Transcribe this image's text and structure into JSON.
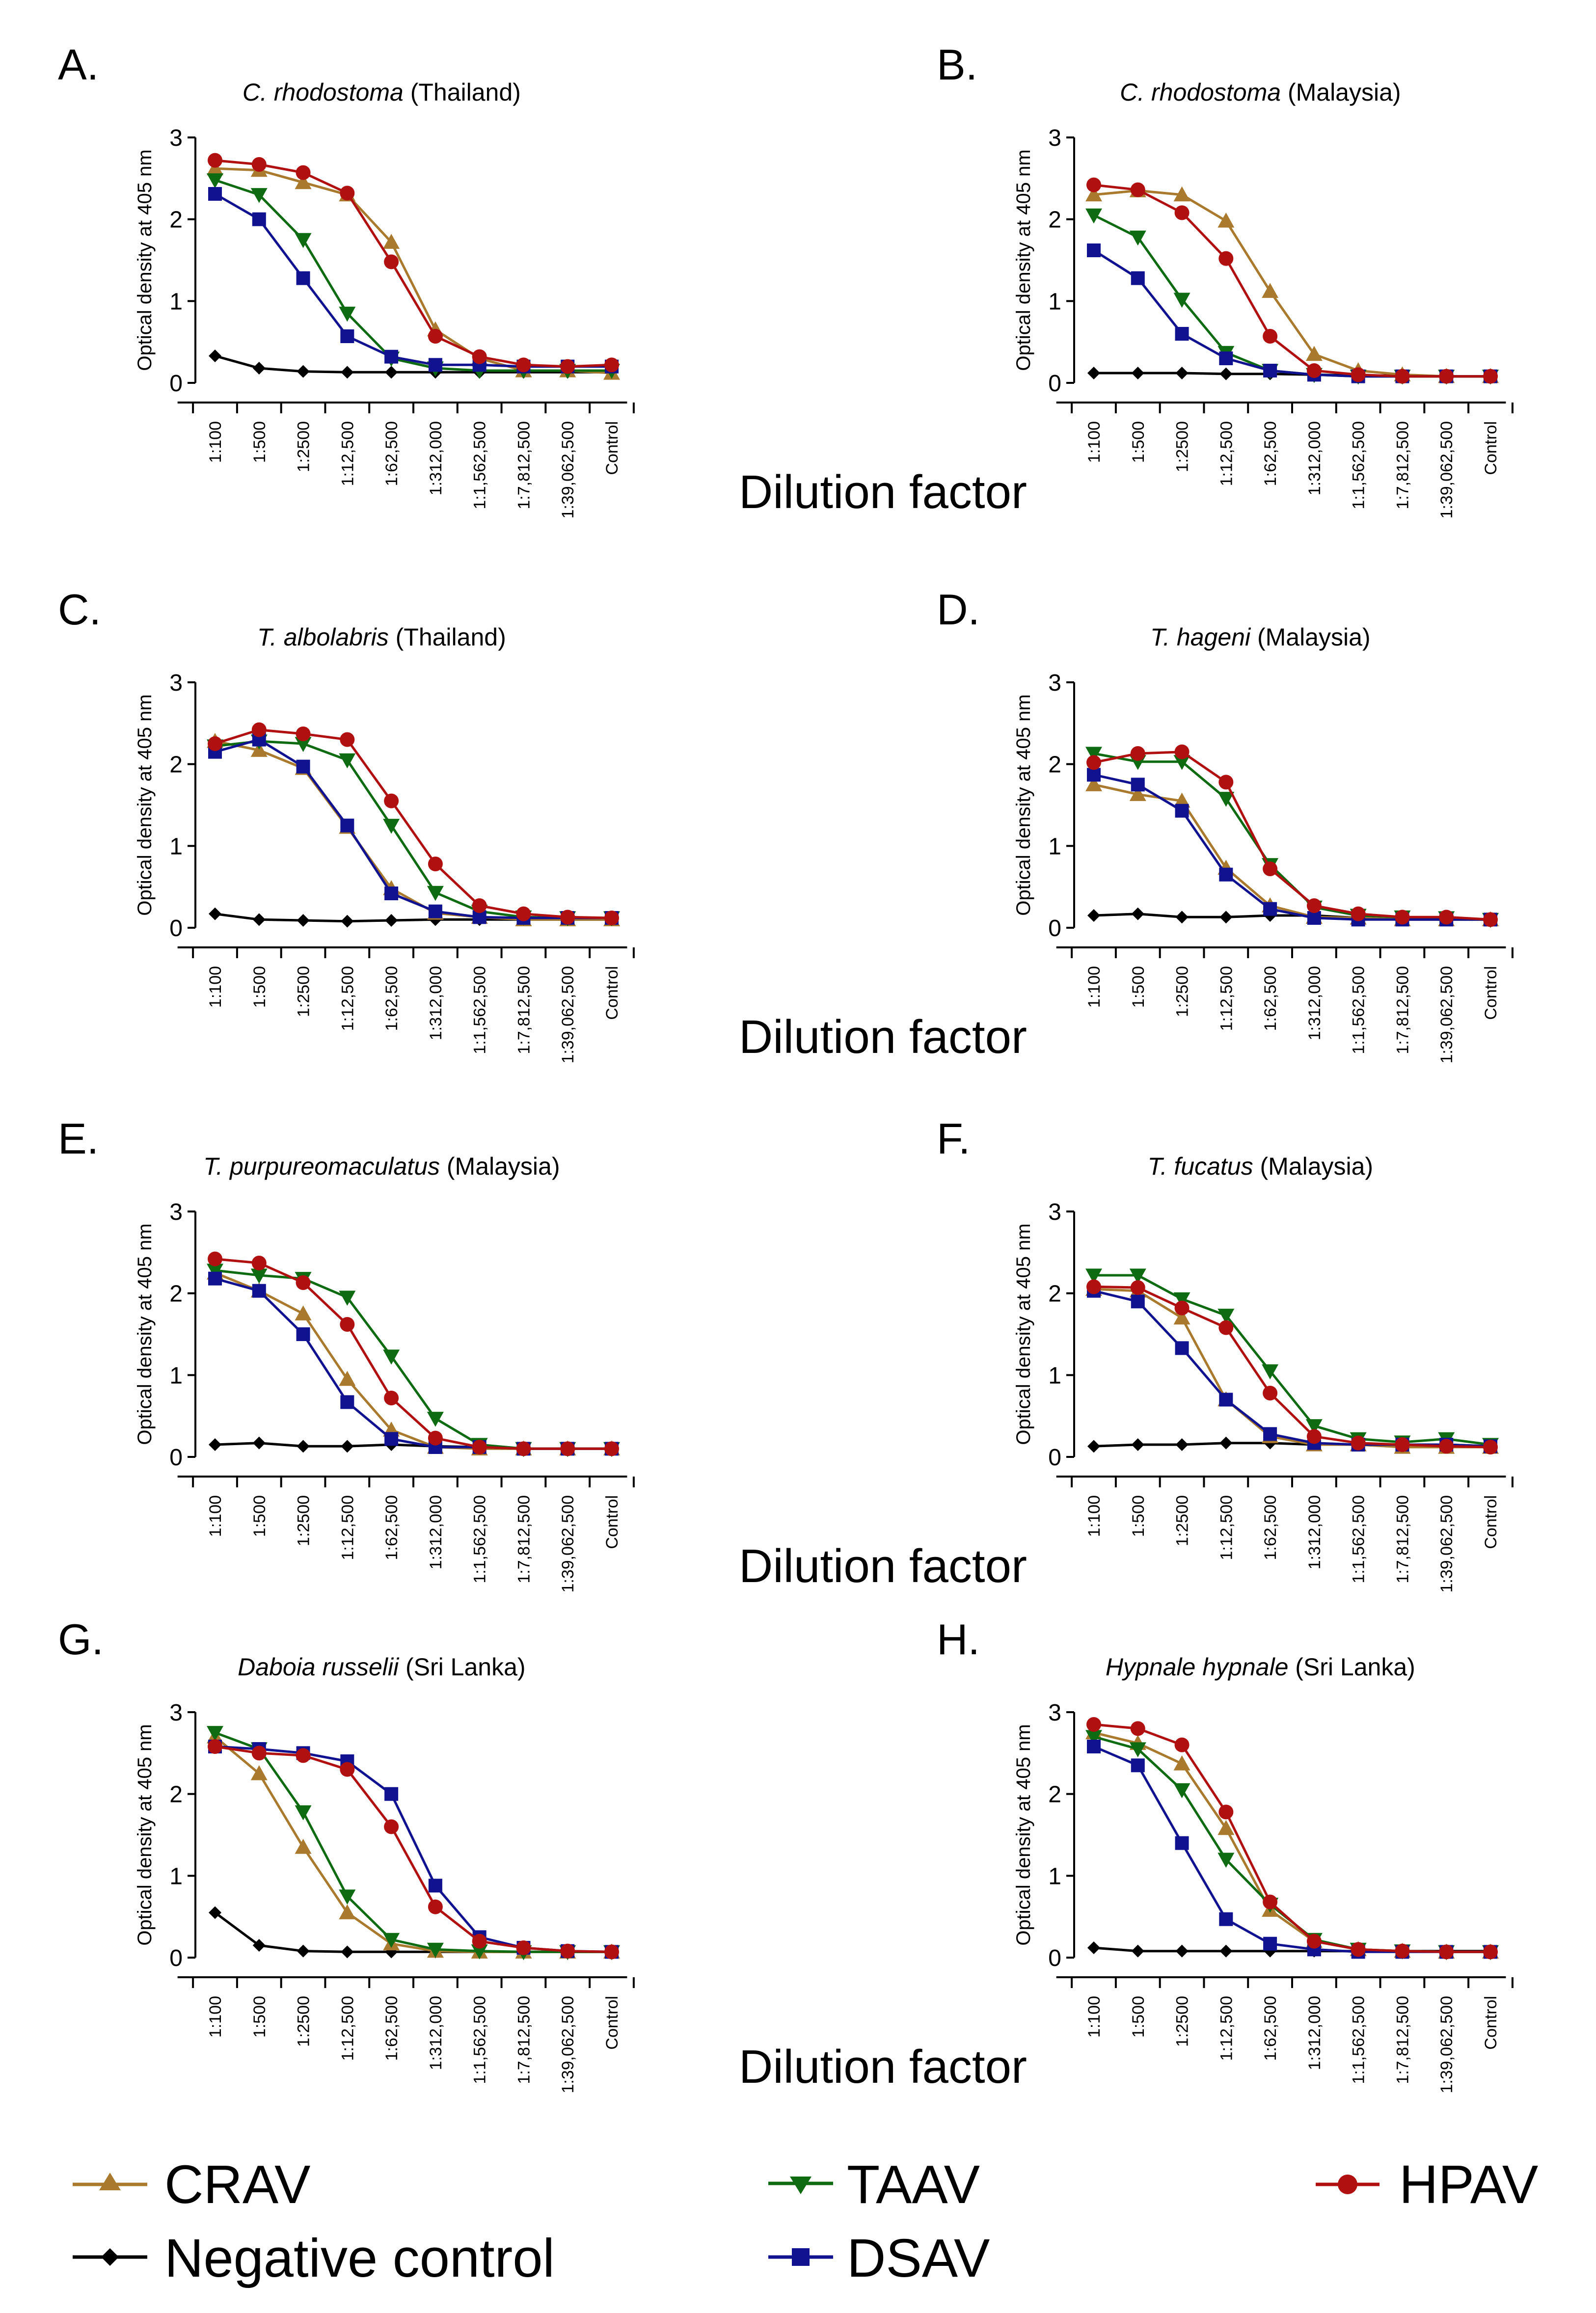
{
  "categories": [
    "1:100",
    "1:500",
    "1:2500",
    "1:12,500",
    "1:62,500",
    "1:312,000",
    "1:1,562,500",
    "1:7,812,500",
    "1:39,062,500",
    "Control"
  ],
  "ylabel": "Optical density at 405 nm",
  "xlabel": "Dilution factor",
  "yticks": [
    "0",
    "1",
    "2",
    "3"
  ],
  "series_styles": {
    "CRAV": {
      "color": "#a97a2e",
      "marker": "triangle-up"
    },
    "TAAV": {
      "color": "#0f6b12",
      "marker": "triangle-down"
    },
    "HPAV": {
      "color": "#b01010",
      "marker": "circle"
    },
    "DSAV": {
      "color": "#10128f",
      "marker": "square"
    },
    "Negative control": {
      "color": "#000000",
      "marker": "diamond"
    }
  },
  "legend": {
    "items": [
      {
        "key": "CRAV",
        "label": "CRAV"
      },
      {
        "key": "TAAV",
        "label": "TAAV"
      },
      {
        "key": "HPAV",
        "label": "HPAV"
      },
      {
        "key": "Negative control",
        "label": "Negative control"
      },
      {
        "key": "DSAV",
        "label": "DSAV"
      }
    ]
  },
  "chart_data": [
    {
      "type": "line",
      "panel": "A.",
      "title_italic": "C. rhodostoma",
      "title_rest": " (Thailand)",
      "ylabel": "Optical density at 405 nm",
      "xlabel": "Dilution factor",
      "ylim": [
        0,
        3
      ],
      "series": [
        {
          "name": "CRAV",
          "values": [
            2.62,
            2.6,
            2.45,
            2.3,
            1.72,
            0.65,
            0.3,
            0.15,
            0.15,
            0.12
          ]
        },
        {
          "name": "TAAV",
          "values": [
            2.48,
            2.3,
            1.75,
            0.85,
            0.3,
            0.18,
            0.15,
            0.15,
            0.15,
            0.15
          ]
        },
        {
          "name": "HPAV",
          "values": [
            2.72,
            2.67,
            2.57,
            2.32,
            1.48,
            0.57,
            0.32,
            0.22,
            0.2,
            0.22
          ]
        },
        {
          "name": "DSAV",
          "values": [
            2.31,
            2.0,
            1.28,
            0.57,
            0.32,
            0.22,
            0.22,
            0.2,
            0.2,
            0.2
          ]
        },
        {
          "name": "Negative control",
          "values": [
            0.33,
            0.18,
            0.14,
            0.13,
            0.13,
            0.13,
            0.13,
            0.13,
            0.13,
            0.13
          ]
        }
      ]
    },
    {
      "type": "line",
      "panel": "B.",
      "title_italic": "C. rhodostoma",
      "title_rest": " (Malaysia)",
      "ylabel": "Optical density at 405 nm",
      "xlabel": "Dilution factor",
      "ylim": [
        0,
        3
      ],
      "series": [
        {
          "name": "CRAV",
          "values": [
            2.3,
            2.35,
            2.3,
            1.98,
            1.12,
            0.35,
            0.15,
            0.1,
            0.08,
            0.08
          ]
        },
        {
          "name": "TAAV",
          "values": [
            2.05,
            1.78,
            1.02,
            0.37,
            0.15,
            0.1,
            0.08,
            0.08,
            0.08,
            0.08
          ]
        },
        {
          "name": "HPAV",
          "values": [
            2.42,
            2.36,
            2.08,
            1.52,
            0.57,
            0.15,
            0.1,
            0.08,
            0.08,
            0.08
          ]
        },
        {
          "name": "DSAV",
          "values": [
            1.62,
            1.28,
            0.6,
            0.3,
            0.15,
            0.1,
            0.08,
            0.08,
            0.08,
            0.08
          ]
        },
        {
          "name": "Negative control",
          "values": [
            0.12,
            0.12,
            0.12,
            0.11,
            0.11,
            0.1,
            0.09,
            0.09,
            0.08,
            0.08
          ]
        }
      ]
    },
    {
      "type": "line",
      "panel": "C.",
      "title_italic": "T. albolabris",
      "title_rest": " (Thailand)",
      "ylabel": "Optical density at 405 nm",
      "xlabel": "Dilution factor",
      "ylim": [
        0,
        3
      ],
      "series": [
        {
          "name": "CRAV",
          "values": [
            2.28,
            2.17,
            1.95,
            1.23,
            0.48,
            0.18,
            0.13,
            0.1,
            0.1,
            0.1
          ]
        },
        {
          "name": "TAAV",
          "values": [
            2.22,
            2.28,
            2.25,
            2.05,
            1.25,
            0.43,
            0.2,
            0.13,
            0.12,
            0.12
          ]
        },
        {
          "name": "HPAV",
          "values": [
            2.25,
            2.42,
            2.37,
            2.3,
            1.55,
            0.78,
            0.27,
            0.17,
            0.13,
            0.12
          ]
        },
        {
          "name": "DSAV",
          "values": [
            2.15,
            2.3,
            1.97,
            1.25,
            0.42,
            0.2,
            0.13,
            0.12,
            0.12,
            0.12
          ]
        },
        {
          "name": "Negative control",
          "values": [
            0.17,
            0.1,
            0.09,
            0.08,
            0.09,
            0.1,
            0.1,
            0.1,
            0.1,
            0.1
          ]
        }
      ]
    },
    {
      "type": "line",
      "panel": "D.",
      "title_italic": "T. hageni",
      "title_rest": " (Malaysia)",
      "ylabel": "Optical density at 405 nm",
      "xlabel": "Dilution factor",
      "ylim": [
        0,
        3
      ],
      "series": [
        {
          "name": "CRAV",
          "values": [
            1.75,
            1.63,
            1.55,
            0.73,
            0.27,
            0.13,
            0.12,
            0.1,
            0.1,
            0.1
          ]
        },
        {
          "name": "TAAV",
          "values": [
            2.13,
            2.03,
            2.03,
            1.58,
            0.77,
            0.25,
            0.15,
            0.13,
            0.12,
            0.1
          ]
        },
        {
          "name": "HPAV",
          "values": [
            2.02,
            2.13,
            2.15,
            1.78,
            0.72,
            0.27,
            0.17,
            0.13,
            0.13,
            0.1
          ]
        },
        {
          "name": "DSAV",
          "values": [
            1.87,
            1.75,
            1.43,
            0.65,
            0.23,
            0.12,
            0.1,
            0.1,
            0.1,
            0.1
          ]
        },
        {
          "name": "Negative control",
          "values": [
            0.15,
            0.17,
            0.13,
            0.13,
            0.15,
            0.15,
            0.12,
            0.1,
            0.1,
            0.1
          ]
        }
      ]
    },
    {
      "type": "line",
      "panel": "E.",
      "title_italic": "T. purpureomaculatus",
      "title_rest": " (Malaysia)",
      "ylabel": "Optical density at 405 nm",
      "xlabel": "Dilution factor",
      "ylim": [
        0,
        3
      ],
      "series": [
        {
          "name": "CRAV",
          "values": [
            2.25,
            2.03,
            1.75,
            0.95,
            0.33,
            0.12,
            0.1,
            0.1,
            0.1,
            0.1
          ]
        },
        {
          "name": "TAAV",
          "values": [
            2.28,
            2.22,
            2.18,
            1.95,
            1.23,
            0.47,
            0.15,
            0.1,
            0.1,
            0.1
          ]
        },
        {
          "name": "HPAV",
          "values": [
            2.42,
            2.37,
            2.13,
            1.62,
            0.72,
            0.23,
            0.12,
            0.1,
            0.1,
            0.1
          ]
        },
        {
          "name": "DSAV",
          "values": [
            2.18,
            2.03,
            1.5,
            0.67,
            0.22,
            0.12,
            0.12,
            0.1,
            0.1,
            0.1
          ]
        },
        {
          "name": "Negative control",
          "values": [
            0.15,
            0.17,
            0.13,
            0.13,
            0.15,
            0.13,
            0.12,
            0.1,
            0.1,
            0.1
          ]
        }
      ]
    },
    {
      "type": "line",
      "panel": "F.",
      "title_italic": "T. fucatus",
      "title_rest": " (Malaysia)",
      "ylabel": "Optical density at 405 nm",
      "xlabel": "Dilution factor",
      "ylim": [
        0,
        3
      ],
      "series": [
        {
          "name": "CRAV",
          "values": [
            2.05,
            2.03,
            1.7,
            0.7,
            0.25,
            0.15,
            0.15,
            0.12,
            0.12,
            0.12
          ]
        },
        {
          "name": "TAAV",
          "values": [
            2.22,
            2.22,
            1.93,
            1.73,
            1.05,
            0.38,
            0.22,
            0.18,
            0.22,
            0.15
          ]
        },
        {
          "name": "HPAV",
          "values": [
            2.08,
            2.07,
            1.82,
            1.58,
            0.78,
            0.25,
            0.17,
            0.15,
            0.13,
            0.12
          ]
        },
        {
          "name": "DSAV",
          "values": [
            2.03,
            1.9,
            1.33,
            0.7,
            0.28,
            0.17,
            0.15,
            0.15,
            0.15,
            0.13
          ]
        },
        {
          "name": "Negative control",
          "values": [
            0.13,
            0.15,
            0.15,
            0.17,
            0.17,
            0.15,
            0.15,
            0.15,
            0.15,
            0.13
          ]
        }
      ]
    },
    {
      "type": "line",
      "panel": "G.",
      "title_italic": "Daboia russelii",
      "title_rest": " (Sri Lanka)",
      "ylabel": "Optical density at 405 nm",
      "xlabel": "Dilution factor",
      "ylim": [
        0,
        3
      ],
      "series": [
        {
          "name": "CRAV",
          "values": [
            2.7,
            2.25,
            1.35,
            0.55,
            0.17,
            0.08,
            0.07,
            0.07,
            0.07,
            0.07
          ]
        },
        {
          "name": "TAAV",
          "values": [
            2.75,
            2.55,
            1.78,
            0.75,
            0.22,
            0.1,
            0.08,
            0.07,
            0.07,
            0.07
          ]
        },
        {
          "name": "HPAV",
          "values": [
            2.58,
            2.5,
            2.47,
            2.3,
            1.6,
            0.62,
            0.2,
            0.12,
            0.08,
            0.07
          ]
        },
        {
          "name": "DSAV",
          "values": [
            2.58,
            2.55,
            2.5,
            2.4,
            2.0,
            0.88,
            0.25,
            0.12,
            0.08,
            0.07
          ]
        },
        {
          "name": "Negative control",
          "values": [
            0.55,
            0.15,
            0.08,
            0.07,
            0.07,
            0.07,
            0.07,
            0.07,
            0.07,
            0.07
          ]
        }
      ]
    },
    {
      "type": "line",
      "panel": "H.",
      "title_italic": "Hypnale hypnale",
      "title_rest": " (Sri Lanka)",
      "ylabel": "Optical density at 405 nm",
      "xlabel": "Dilution factor",
      "ylim": [
        0,
        3
      ],
      "series": [
        {
          "name": "CRAV",
          "values": [
            2.75,
            2.62,
            2.37,
            1.58,
            0.58,
            0.2,
            0.1,
            0.08,
            0.07,
            0.07
          ]
        },
        {
          "name": "TAAV",
          "values": [
            2.7,
            2.55,
            2.05,
            1.2,
            0.65,
            0.22,
            0.1,
            0.08,
            0.07,
            0.07
          ]
        },
        {
          "name": "HPAV",
          "values": [
            2.85,
            2.8,
            2.6,
            1.78,
            0.68,
            0.2,
            0.1,
            0.08,
            0.07,
            0.07
          ]
        },
        {
          "name": "DSAV",
          "values": [
            2.58,
            2.35,
            1.4,
            0.47,
            0.17,
            0.1,
            0.07,
            0.07,
            0.07,
            0.07
          ]
        },
        {
          "name": "Negative control",
          "values": [
            0.12,
            0.08,
            0.08,
            0.08,
            0.08,
            0.08,
            0.08,
            0.08,
            0.08,
            0.08
          ]
        }
      ]
    }
  ]
}
